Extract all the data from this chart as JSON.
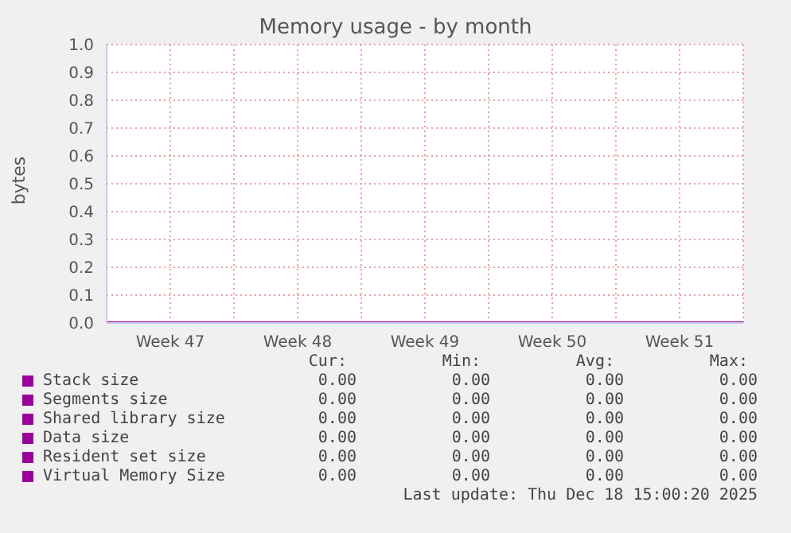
{
  "chart_data": {
    "type": "line",
    "title": "Memory usage - by month",
    "ylabel": "bytes",
    "categories": [
      null,
      "Week 47",
      null,
      "Week 48",
      null,
      "Week 49",
      null,
      "Week 50",
      null,
      "Week 51",
      null
    ],
    "ylim": [
      0,
      1
    ],
    "yticks": [
      {
        "value": 0,
        "label": "0.0"
      },
      0.1,
      0.2,
      0.3,
      0.4,
      0.5,
      0.6,
      0.7,
      0.8,
      0.9,
      {
        "value": 1,
        "label": "1.0"
      }
    ],
    "series": [
      {
        "name": "Stack size",
        "color": "#990099",
        "values": [
          null,
          null,
          null,
          null,
          null,
          null,
          null,
          null,
          null,
          null,
          null
        ]
      },
      {
        "name": "Segments size",
        "color": "#990099",
        "values": [
          null,
          null,
          null,
          null,
          null,
          null,
          null,
          null,
          null,
          null,
          null
        ]
      },
      {
        "name": "Shared library size",
        "color": "#990099",
        "values": [
          null,
          null,
          null,
          null,
          null,
          null,
          null,
          null,
          null,
          null,
          null
        ]
      },
      {
        "name": "Data size",
        "color": "#990099",
        "values": [
          null,
          null,
          null,
          null,
          null,
          null,
          null,
          null,
          null,
          null,
          null
        ]
      },
      {
        "name": "Resident set size",
        "color": "#990099",
        "values": [
          null,
          null,
          null,
          null,
          null,
          null,
          null,
          null,
          null,
          null,
          null
        ]
      },
      {
        "name": "Virtual Memory Size",
        "color": "#990099",
        "values": [
          0,
          0,
          0,
          0,
          0,
          0,
          0,
          0,
          0,
          0,
          0
        ]
      }
    ],
    "grid": true,
    "legend": "bottom",
    "annotations": [
      "Cur:",
      "Min:",
      "Avg:",
      "Max:",
      "0.00",
      "0.00",
      "0.00",
      "0.00",
      "0.00",
      "0.00",
      "0.00",
      "0.00",
      "0.00",
      "0.00",
      "0.00",
      "0.00",
      "0.00",
      "0.00",
      "0.00",
      "0.00",
      "0.00",
      "0.00",
      "0.00",
      "0.00",
      "0.00",
      "0.00",
      "0.00",
      "0.00",
      "Last update: Thu Dec 18 15:00:20 2025"
    ]
  }
}
